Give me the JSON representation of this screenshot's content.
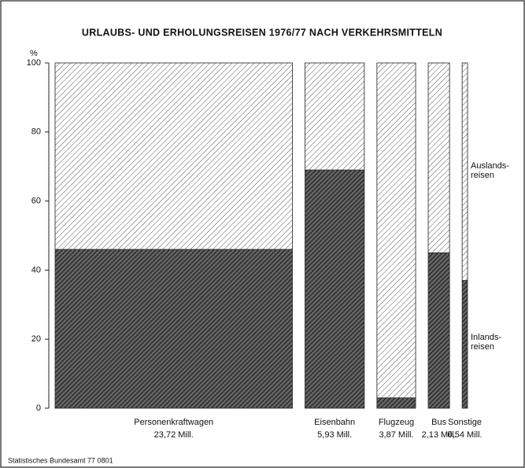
{
  "chart_data": {
    "type": "mekko",
    "title": "URLAUBS- UND ERHOLUNGSREISEN 1976/77 NACH VERKEHRSMITTELN",
    "y_unit": "%",
    "categories": [
      "Personenkraftwagen",
      "Eisenbahn",
      "Flugzeug",
      "Bus",
      "Sonstige"
    ],
    "totals": [
      23.72,
      5.93,
      3.87,
      2.13,
      0.54
    ],
    "totals_labels": [
      "23,72 Mill.",
      "5,93 Mill.",
      "3,87 Mill.",
      "2,13 Mill.",
      "0,54 Mill."
    ],
    "series": [
      {
        "name": "Inlands- reisen",
        "color": "#222222",
        "values": [
          46,
          69,
          3,
          45,
          37
        ]
      },
      {
        "name": "Auslands- reisen",
        "color": "#555555",
        "values": [
          54,
          31,
          97,
          55,
          63
        ]
      }
    ],
    "ylim": [
      0,
      100
    ],
    "yticks": [
      0,
      20,
      40,
      60,
      80,
      100
    ],
    "source": "Statistisches Bundesamt 77 0801"
  }
}
